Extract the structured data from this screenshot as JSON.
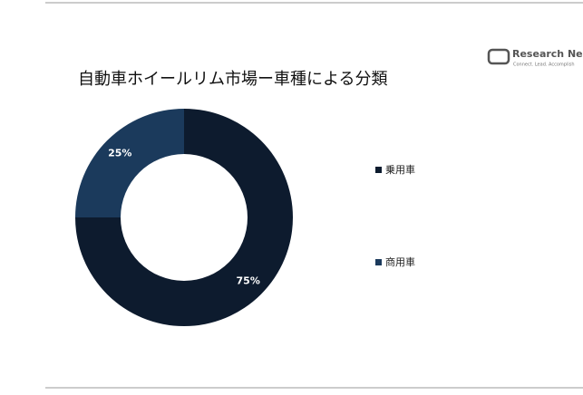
{
  "chart_data": {
    "type": "donut",
    "title": "自動車ホイールリム市場ー車種による分類",
    "categories": [
      "乗用車",
      "商用車"
    ],
    "values": [
      75,
      25
    ],
    "value_labels": [
      "75%",
      "25%"
    ],
    "colors": [
      "#0d1b2e",
      "#1b3a5c"
    ],
    "legend": "right"
  },
  "logo": {
    "name": "Research Nester",
    "tagline": "Connect. Lead. Accomplish"
  }
}
